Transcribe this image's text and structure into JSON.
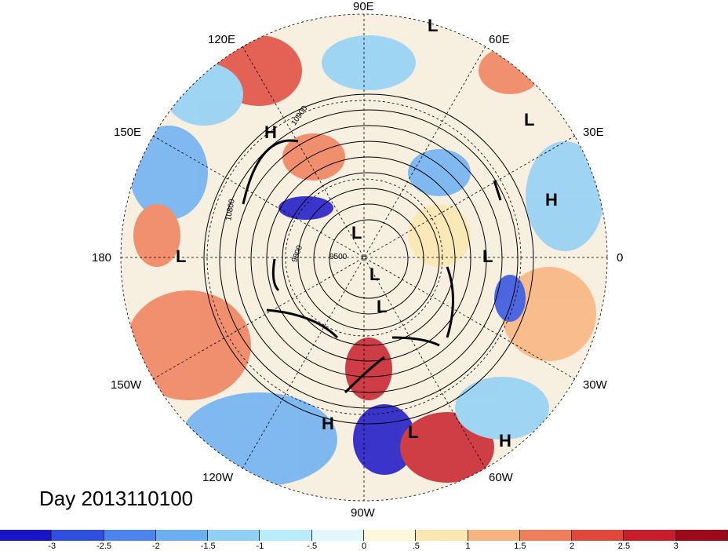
{
  "date_label": "Day 2013110100",
  "longitude_labels": {
    "n90E": "90E",
    "n60E": "60E",
    "n30E": "30E",
    "zero": "0",
    "n30W": "30W",
    "n60W": "60W",
    "n90W": "90W",
    "n120W": "120W",
    "n150W": "150W",
    "n180": "180",
    "n150E": "150E",
    "n120E": "120E"
  },
  "contour_labels": {
    "c1": "10900",
    "c2": "10800",
    "c3": "9800",
    "c4": "9500"
  },
  "pressure_centers": [
    {
      "type": "L"
    },
    {
      "type": "L"
    },
    {
      "type": "H"
    },
    {
      "type": "H"
    },
    {
      "type": "L"
    },
    {
      "type": "L"
    },
    {
      "type": "L"
    },
    {
      "type": "L"
    },
    {
      "type": "L"
    },
    {
      "type": "L"
    },
    {
      "type": "H"
    },
    {
      "type": "L"
    },
    {
      "type": "H"
    }
  ],
  "colorbar": {
    "colors": [
      "#1a14c8",
      "#2f4fe0",
      "#4a84ec",
      "#6aaff2",
      "#8fd0f6",
      "#b8ecfa",
      "#e2f8fc",
      "#fdf8dc",
      "#fce7b0",
      "#f8b37e",
      "#ef7f5a",
      "#e0483c",
      "#c81e2a",
      "#9c0a1a"
    ],
    "ticks": [
      "-3",
      "-2.5",
      "-2",
      "-1.5",
      "-1",
      "-.5",
      "0",
      ".5",
      "1",
      "1.5",
      "2",
      "2.5",
      "3"
    ]
  }
}
